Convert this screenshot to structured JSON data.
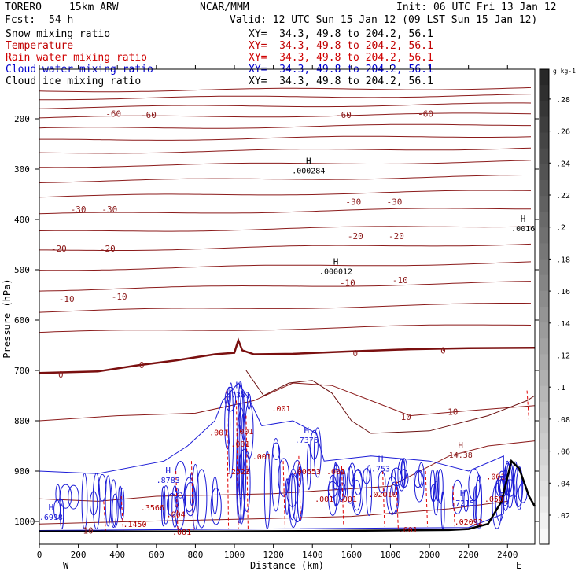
{
  "header": {
    "model": "TORERO",
    "res": "15km ARW",
    "center": "NCAR/MMM",
    "init": "Init: 06 UTC Fri 13 Jan 12",
    "fcst_label": "Fcst:",
    "fcst_value": "54 h",
    "valid": "Valid: 12 UTC Sun 15 Jan 12 (09 LST Sun 15 Jan 12)"
  },
  "fields": [
    {
      "name": "Snow mixing ratio",
      "xy": "XY=  34.3, 49.8 to 204.2, 56.1",
      "color": "#000000"
    },
    {
      "name": "Temperature",
      "xy": "XY=  34.3, 49.8 to 204.2, 56.1",
      "color": "#c00000"
    },
    {
      "name": "Rain water mixing ratio",
      "xy": "XY=  34.3, 49.8 to 204.2, 56.1",
      "color": "#d00000"
    },
    {
      "name": "Cloud water mixing ratio",
      "xy": "XY=  34.3, 49.8 to 204.2, 56.1",
      "color": "#0000cc"
    },
    {
      "name": "Cloud ice mixing ratio",
      "xy": "XY=  34.3, 49.8 to 204.2, 56.1",
      "color": "#000000"
    }
  ],
  "chart_data": {
    "type": "cross-section contour",
    "title": "Vertical cross-section",
    "xlabel": "Distance (km)",
    "ylabel": "Pressure (hPa)",
    "xlim": [
      0,
      2540
    ],
    "ylim": [
      1050,
      100
    ],
    "x_ticks": [
      0,
      200,
      400,
      600,
      800,
      1000,
      1200,
      1400,
      1600,
      1800,
      2000,
      2200,
      2400
    ],
    "y_ticks": [
      200,
      300,
      400,
      500,
      600,
      700,
      800,
      900,
      1000
    ],
    "x_end_labels": [
      "W",
      "E"
    ],
    "colorbar": {
      "unit": "g kg-1",
      "ticks": [
        ".02",
        ".04",
        ".06",
        ".08",
        ".1",
        ".12",
        ".14",
        ".16",
        ".18",
        ".2",
        ".22",
        ".24",
        ".26",
        ".28"
      ]
    },
    "temperature_labels": [
      {
        "text": "-60",
        "x": 380,
        "p": 190
      },
      {
        "text": "-60",
        "x": 560,
        "p": 192
      },
      {
        "text": "-60",
        "x": 1560,
        "p": 192
      },
      {
        "text": "-60",
        "x": 1980,
        "p": 190
      },
      {
        "text": "-30",
        "x": 200,
        "p": 380
      },
      {
        "text": "-30",
        "x": 360,
        "p": 380
      },
      {
        "text": "-30",
        "x": 1610,
        "p": 365
      },
      {
        "text": "-30",
        "x": 1820,
        "p": 365
      },
      {
        "text": "-20",
        "x": 100,
        "p": 458
      },
      {
        "text": "-20",
        "x": 350,
        "p": 458
      },
      {
        "text": "-20",
        "x": 1620,
        "p": 433
      },
      {
        "text": "-20",
        "x": 1830,
        "p": 433
      },
      {
        "text": "-10",
        "x": 140,
        "p": 558
      },
      {
        "text": "-10",
        "x": 410,
        "p": 553
      },
      {
        "text": "-10",
        "x": 1580,
        "p": 526
      },
      {
        "text": "-10",
        "x": 1850,
        "p": 520
      },
      {
        "text": "0",
        "x": 110,
        "p": 708
      },
      {
        "text": "0",
        "x": 525,
        "p": 689
      },
      {
        "text": "0",
        "x": 1620,
        "p": 666
      },
      {
        "text": "0",
        "x": 2070,
        "p": 660
      },
      {
        "text": "10",
        "x": 1880,
        "p": 792
      },
      {
        "text": "10",
        "x": 2120,
        "p": 782
      },
      {
        "text": "10",
        "x": 250,
        "p": 1018
      }
    ],
    "extrema_labels": [
      {
        "kind": "H",
        "value": ".000284",
        "x": 1380,
        "p": 290
      },
      {
        "kind": "H",
        "value": ".000012",
        "x": 1520,
        "p": 490
      },
      {
        "kind": "H",
        "value": ".0016",
        "x": 2480,
        "p": 405
      },
      {
        "kind": "H",
        "value": ".7381",
        "x": 1020,
        "p": 735
      },
      {
        "kind": "H",
        "value": ".7376",
        "x": 1370,
        "p": 825
      },
      {
        "kind": "H",
        "value": "14.38",
        "x": 2160,
        "p": 855
      },
      {
        "kind": "H",
        "value": ".8783",
        "x": 660,
        "p": 905
      },
      {
        "kind": "H",
        "value": ".753",
        "x": 1750,
        "p": 882
      },
      {
        "kind": "H",
        "value": ".6918",
        "x": 60,
        "p": 978
      },
      {
        "kind": "H",
        "value": ".7215",
        "x": 2170,
        "p": 950
      }
    ],
    "moisture_labels": [
      {
        "text": ".001",
        "x": 1240,
        "p": 775
      },
      {
        "text": ".001",
        "x": 920,
        "p": 823
      },
      {
        "text": ".001",
        "x": 1030,
        "p": 845
      },
      {
        "text": ".001",
        "x": 2340,
        "p": 910
      },
      {
        "text": ".001",
        "x": 1140,
        "p": 870
      },
      {
        "text": ".001",
        "x": 1460,
        "p": 955
      },
      {
        "text": ".001",
        "x": 730,
        "p": 1020
      },
      {
        "text": ".001",
        "x": 1890,
        "p": 1016
      },
      {
        "text": ".001",
        "x": 1580,
        "p": 955
      },
      {
        "text": ".004",
        "x": 700,
        "p": 985
      },
      {
        "text": ".2523",
        "x": 1020,
        "p": 900
      },
      {
        "text": ".00653",
        "x": 1370,
        "p": 900
      },
      {
        "text": ".001",
        "x": 1050,
        "p": 820
      },
      {
        "text": ".001",
        "x": 1520,
        "p": 900
      },
      {
        "text": ".02010",
        "x": 1760,
        "p": 945
      },
      {
        "text": ".1450",
        "x": 490,
        "p": 1005
      },
      {
        "text": ".3566",
        "x": 580,
        "p": 972
      },
      {
        "text": ".02092",
        "x": 2200,
        "p": 1000
      },
      {
        "text": ".050",
        "x": 2330,
        "p": 955
      }
    ]
  }
}
